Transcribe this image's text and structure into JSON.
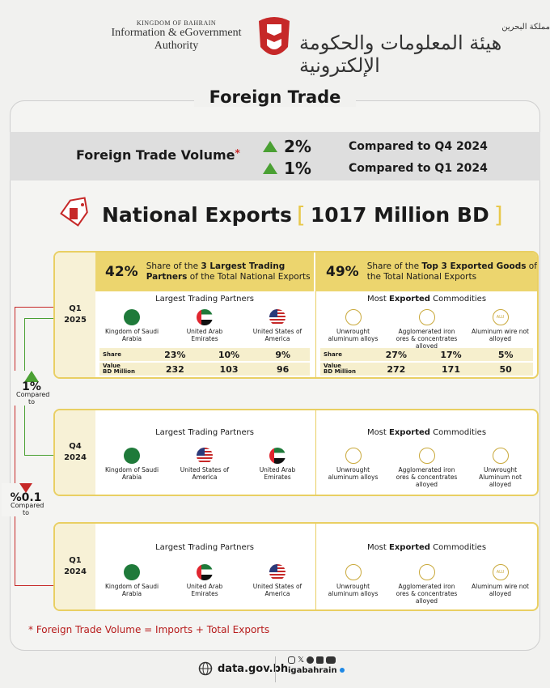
{
  "header": {
    "kingdom": "KINGDOM OF BAHRAIN",
    "name_line1": "Information & eGovernment",
    "name_line2": "Authority",
    "arabic_name": "هيئة المعلومات والحكومة الإلكترونية",
    "arabic_kingdom": "مملكة البحرين"
  },
  "title": "Foreign Trade",
  "volume": {
    "label": "Foreign Trade Volume",
    "star": "*",
    "rows": [
      {
        "pct": "2%",
        "cmp": "Compared to Q4 2024"
      },
      {
        "pct": "1%",
        "cmp": "Compared to Q1 2024"
      }
    ]
  },
  "exports": {
    "title": "National Exports",
    "bracket_open": "[",
    "value": "1017 Million BD",
    "bracket_close": "]"
  },
  "q1_2025": {
    "label": "Q1\n2025",
    "partners_share": "42%",
    "partners_text_a": "Share of the ",
    "partners_text_b": "3 Largest Trading Partners",
    "partners_text_c": " of the Total National Exports",
    "goods_share": "49%",
    "goods_text_a": "Share of the ",
    "goods_text_b": "Top 3 Exported Goods",
    "goods_text_c": " of the Total National Exports",
    "partners_title": "Largest Trading Partners",
    "commod_title_a": "Most ",
    "commod_title_b": "Exported",
    "commod_title_c": " Commodities",
    "partners": [
      "Kingdom of Saudi Arabia",
      "United Arab Emirates",
      "United States of America"
    ],
    "commodities": [
      "Unwrought aluminum alloys",
      "Agglomerated iron ores & concentrates alloyed",
      "Aluminum wire not alloyed"
    ],
    "share_label": "Share",
    "value_label_1": "Value",
    "value_label_2": "BD Million",
    "partner_share": [
      "23%",
      "10%",
      "9%"
    ],
    "partner_value": [
      "232",
      "103",
      "96"
    ],
    "commod_share": [
      "27%",
      "17%",
      "5%"
    ],
    "commod_value": [
      "272",
      "171",
      "50"
    ]
  },
  "q4_2024": {
    "label": "Q4\n2024",
    "partners_title": "Largest Trading Partners",
    "commod_title_a": "Most ",
    "commod_title_b": "Exported",
    "commod_title_c": " Commodities",
    "partners": [
      "Kingdom of Saudi Arabia",
      "United States of America",
      "United Arab Emirates"
    ],
    "commodities": [
      "Unwrought aluminum alloys",
      "Agglomerated iron ores & concentrates alloyed",
      "Unwrought Aluminum not alloyed"
    ]
  },
  "q1_2024": {
    "label": "Q1\n2024",
    "partners_title": "Largest Trading Partners",
    "commod_title_a": "Most ",
    "commod_title_b": "Exported",
    "commod_title_c": " Commodities",
    "partners": [
      "Kingdom of Saudi Arabia",
      "United Arab Emirates",
      "United States of America"
    ],
    "commodities": [
      "Unwrought aluminum alloys",
      "Agglomerated iron ores & concentrates alloyed",
      "Aluminum wire not alloyed"
    ]
  },
  "side": {
    "up_pct": "1%",
    "up_text": "Compared to",
    "down_pct": "%0.1",
    "down_text": "Compared to"
  },
  "icon_text": {
    "alu": "ALU"
  },
  "footnote": "*  Foreign Trade Volume = Imports + Total Exports",
  "footer": {
    "site": "data.gov.bh",
    "handle": "igabahrain"
  },
  "colors": {
    "gold": "#e9cf63",
    "up": "#4aa033",
    "down": "#c62828"
  }
}
